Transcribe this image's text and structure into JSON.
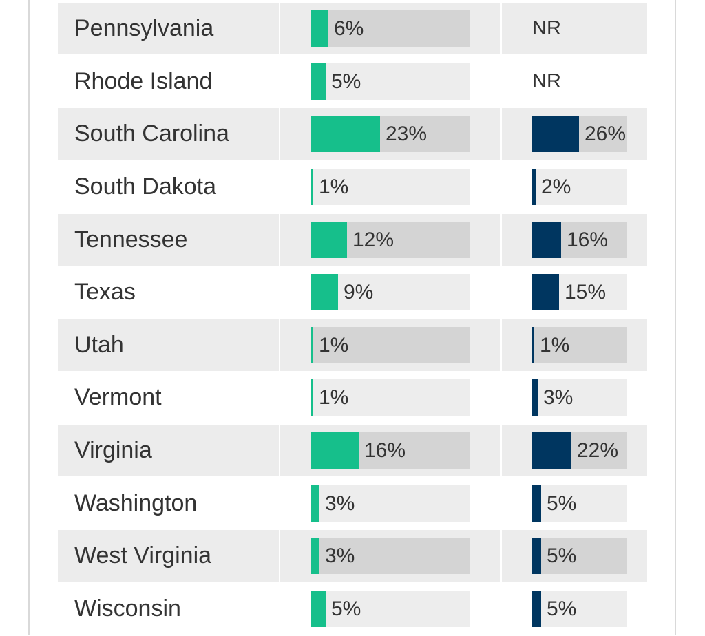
{
  "chart_data": {
    "type": "table",
    "columns": [
      {
        "key": "a",
        "color": "#16bf8b"
      },
      {
        "key": "b",
        "color": "#003660"
      }
    ],
    "rows": [
      {
        "state": "Pennsylvania",
        "a": {
          "value": 6,
          "label": "6%"
        },
        "b": {
          "value": null,
          "label": "NR"
        }
      },
      {
        "state": "Rhode Island",
        "a": {
          "value": 5,
          "label": "5%"
        },
        "b": {
          "value": null,
          "label": "NR"
        }
      },
      {
        "state": "South Carolina",
        "a": {
          "value": 23,
          "label": "23%"
        },
        "b": {
          "value": 26,
          "label": "26%"
        }
      },
      {
        "state": "South Dakota",
        "a": {
          "value": 1,
          "label": "1%"
        },
        "b": {
          "value": 2,
          "label": "2%"
        }
      },
      {
        "state": "Tennessee",
        "a": {
          "value": 12,
          "label": "12%"
        },
        "b": {
          "value": 16,
          "label": "16%"
        }
      },
      {
        "state": "Texas",
        "a": {
          "value": 9,
          "label": "9%"
        },
        "b": {
          "value": 15,
          "label": "15%"
        }
      },
      {
        "state": "Utah",
        "a": {
          "value": 1,
          "label": "1%"
        },
        "b": {
          "value": 1,
          "label": "1%"
        }
      },
      {
        "state": "Vermont",
        "a": {
          "value": 1,
          "label": "1%"
        },
        "b": {
          "value": 3,
          "label": "3%"
        }
      },
      {
        "state": "Virginia",
        "a": {
          "value": 16,
          "label": "16%"
        },
        "b": {
          "value": 22,
          "label": "22%"
        }
      },
      {
        "state": "Washington",
        "a": {
          "value": 3,
          "label": "3%"
        },
        "b": {
          "value": 5,
          "label": "5%"
        }
      },
      {
        "state": "West Virginia",
        "a": {
          "value": 3,
          "label": "3%"
        },
        "b": {
          "value": 5,
          "label": "5%"
        }
      },
      {
        "state": "Wisconsin",
        "a": {
          "value": 5,
          "label": "5%"
        },
        "b": {
          "value": 5,
          "label": "5%"
        }
      }
    ]
  }
}
